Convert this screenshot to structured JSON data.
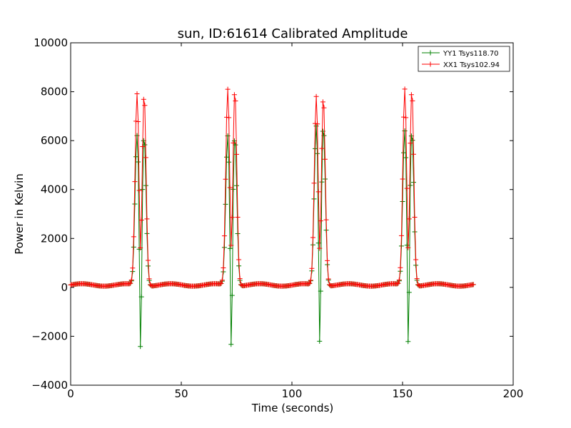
{
  "chart_data": {
    "type": "line",
    "title": "sun, ID:61614 Calibrated Amplitude",
    "xlabel": "Time (seconds)",
    "ylabel": "Power in Kelvin",
    "xlim": [
      0,
      200
    ],
    "ylim": [
      -4000,
      10000
    ],
    "xticks": [
      "0",
      "50",
      "100",
      "150",
      "200"
    ],
    "yticks": [
      "−4000",
      "−2000",
      "0",
      "2000",
      "4000",
      "6000",
      "8000",
      "10000"
    ],
    "grid": false,
    "legend_position": "top-right",
    "marker": "plus",
    "series": [
      {
        "name": "YY1 Tsys118.70",
        "color": "#008000",
        "peaks": [
          {
            "t": 30,
            "top": 6200,
            "bottom": -3000
          },
          {
            "t": 71,
            "top": 6200,
            "bottom": -2900
          },
          {
            "t": 111,
            "top": 6600,
            "bottom": -2800
          },
          {
            "t": 151,
            "top": 6400,
            "bottom": -2800
          }
        ]
      },
      {
        "name": "XX1 Tsys102.94",
        "color": "#ff0000",
        "peaks": [
          {
            "t": 30,
            "top": 7900,
            "bottom": 1000
          },
          {
            "t": 71,
            "top": 8100,
            "bottom": 1100
          },
          {
            "t": 111,
            "top": 7800,
            "bottom": 1000
          },
          {
            "t": 151,
            "top": 8100,
            "bottom": 1000
          }
        ]
      }
    ],
    "x_end": 182,
    "baseline": 100
  }
}
